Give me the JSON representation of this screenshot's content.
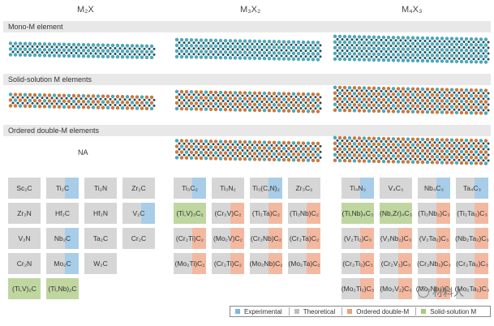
{
  "colors": {
    "experimental": "#a7cde8",
    "theoretical": "#d6d6d6",
    "ordered": "#f3b9a0",
    "solid": "#bfd6a0",
    "teal": "#49a7b8",
    "orange": "#c9773a"
  },
  "headers": [
    "M₂X",
    "M₃X₂",
    "M₄X₃"
  ],
  "rows": {
    "mono": "Mono-M element",
    "solid": "Solid-solution M elements",
    "ordered": "Ordered double-M elements"
  },
  "na": "NA",
  "grid1": [
    {
      "label": "Sc₂C",
      "type": "theoretical"
    },
    {
      "label": "Ti₂C",
      "type": "experimental"
    },
    {
      "label": "Ti₂N",
      "type": "theoretical"
    },
    {
      "label": "Zr₂C",
      "type": "theoretical"
    },
    {
      "label": "Zr₂N",
      "type": "theoretical"
    },
    {
      "label": "Hf₂C",
      "type": "theoretical"
    },
    {
      "label": "Hf₂N",
      "type": "theoretical"
    },
    {
      "label": "V₂C",
      "type": "experimental"
    },
    {
      "label": "V₂N",
      "type": "theoretical"
    },
    {
      "label": "Nb₂C",
      "type": "experimental"
    },
    {
      "label": "Ta₂C",
      "type": "theoretical"
    },
    {
      "label": "Cr₂C",
      "type": "theoretical"
    },
    {
      "label": "Cr₂N",
      "type": "theoretical"
    },
    {
      "label": "Mo₂C",
      "type": "experimental"
    },
    {
      "label": "W₂C",
      "type": "theoretical"
    },
    null,
    {
      "label": "(Ti,V)₂C",
      "type": "solid"
    },
    {
      "label": "(Ti,Nb)₂C",
      "type": "solid"
    },
    null,
    null
  ],
  "grid2": [
    {
      "label": "Ti₃C₂",
      "type": "experimental"
    },
    {
      "label": "Ti₃N₂",
      "type": "theoretical"
    },
    {
      "label": "Ti₃(C,N)₂",
      "type": "experimental"
    },
    {
      "label": "Zr₃C₂",
      "type": "theoretical"
    },
    {
      "label": "(Ti,V)₃C₂",
      "type": "solid"
    },
    {
      "label": "(Cr₂V)C₂",
      "type": "ordered"
    },
    {
      "label": "(Ti₂Ta)C₂",
      "type": "ordered"
    },
    {
      "label": "(Ti₂Nb)C₂",
      "type": "ordered"
    },
    {
      "label": "(Cr₂Ti)C₂",
      "type": "ordered"
    },
    {
      "label": "(Mo₂V)C₂",
      "type": "ordered"
    },
    {
      "label": "(Cr₂Nb)C₂",
      "type": "ordered"
    },
    {
      "label": "(Cr₂Ta)C₂",
      "type": "ordered"
    },
    {
      "label": "(Mo₂Ti)C₂",
      "type": "ordered"
    },
    {
      "label": "(Cr₂Ti)C₂",
      "type": "ordered"
    },
    {
      "label": "(Mo₂Nb)C₂",
      "type": "ordered"
    },
    {
      "label": "(Mo₂Ta)C₂",
      "type": "ordered"
    },
    null,
    null,
    null,
    null
  ],
  "grid3": [
    {
      "label": "Ti₄N₃",
      "type": "experimental"
    },
    {
      "label": "V₄C₃",
      "type": "theoretical"
    },
    {
      "label": "Nb₄C₃",
      "type": "experimental"
    },
    {
      "label": "Ta₄C₃",
      "type": "experimental"
    },
    {
      "label": "(Ti,Nb)₄C₃",
      "type": "solid"
    },
    {
      "label": "(Nb,Zr)₄C₃",
      "type": "solid"
    },
    {
      "label": "(Ti₂Nb₂)C₃",
      "type": "ordered"
    },
    {
      "label": "(Ti₂Ta₂)C₃",
      "type": "ordered"
    },
    {
      "label": "(V₂Ti₂)C₃",
      "type": "ordered"
    },
    {
      "label": "(V₂Nb₂)C₃",
      "type": "ordered"
    },
    {
      "label": "(V₂Ta₂)C₃",
      "type": "ordered"
    },
    {
      "label": "(Nb₂Ta₂)C₃",
      "type": "ordered"
    },
    {
      "label": "(Cr₂Ti₂)C₃",
      "type": "ordered"
    },
    {
      "label": "(Cr₂V₂)C₃",
      "type": "ordered"
    },
    {
      "label": "(Cr₂Nb₂)C₃",
      "type": "ordered"
    },
    {
      "label": "(Cr₂Ta₂)C₃",
      "type": "ordered"
    },
    {
      "label": "(Mo₂Ti₂)C₃",
      "type": "ordered"
    },
    {
      "label": "(Mo₂V₂)C₃",
      "type": "ordered"
    },
    {
      "label": "(Mo₂Nb₂)C₃",
      "type": "ordered"
    },
    {
      "label": "(Mo₂Ta₂)C₃",
      "type": "ordered"
    }
  ],
  "legend": {
    "experimental": "Experimental",
    "theoretical": "Theoretical",
    "ordered": "Ordered double-M",
    "solid": "Solid-solution M"
  },
  "watermark": "材料人",
  "structures": {
    "m2x_mono": {
      "colors": "teal"
    },
    "m3x2_mono": {
      "colors": "teal"
    },
    "m4x3_mono": {
      "colors": "teal"
    },
    "m2x_solid": {
      "colors": "mixed"
    },
    "m3x2_solid": {
      "colors": "mixed"
    },
    "m4x3_solid": {
      "colors": "mixed"
    },
    "m3x2_ordered": {
      "colors": "mixed"
    },
    "m4x3_ordered": {
      "colors": "mixed"
    }
  }
}
